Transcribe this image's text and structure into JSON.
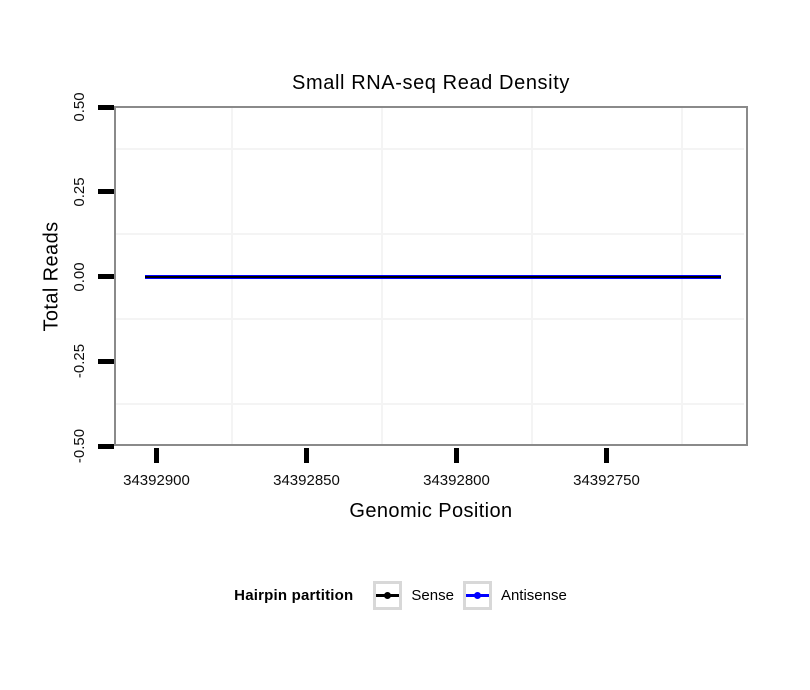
{
  "chart_data": {
    "type": "line",
    "title": "Small RNA-seq Read Density",
    "xlabel": "Genomic Position",
    "ylabel": "Total Reads",
    "x_axis_reversed": true,
    "xlim": [
      34392915,
      34392703
    ],
    "ylim": [
      -0.5,
      0.5
    ],
    "x_ticks": [
      34392900,
      34392850,
      34392800,
      34392750
    ],
    "x_tick_labels": [
      "34392900",
      "34392850",
      "34392800",
      "34392750"
    ],
    "y_ticks": [
      0.5,
      0.25,
      0.0,
      -0.25,
      -0.5
    ],
    "y_tick_labels": [
      "0.50",
      "0.25",
      "0.00",
      "-0.25",
      "-0.50"
    ],
    "x_minor_gridlines": [
      34392875,
      34392825,
      34392775,
      34392725
    ],
    "y_minor_gridlines": [
      0.375,
      0.125,
      -0.125,
      -0.375
    ],
    "grid": "minor-only",
    "series": [
      {
        "name": "Antisense",
        "color": "#0000FF",
        "y": 0,
        "x_start": 34392904,
        "x_end": 34392712
      },
      {
        "name": "Sense",
        "color": "#000000",
        "y": 0,
        "x_start": 34392904,
        "x_end": 34392712
      }
    ],
    "legend": {
      "title": "Hairpin partition",
      "position": "bottom",
      "entries": [
        {
          "label": "Sense",
          "color": "#000000"
        },
        {
          "label": "Antisense",
          "color": "#0000FF"
        }
      ]
    },
    "colors": {
      "panel_border": "#8a8a8a",
      "minor_grid": "#f4f4f4",
      "legend_key_border": "#d8d8d8",
      "tick_marks": "#000000"
    }
  }
}
